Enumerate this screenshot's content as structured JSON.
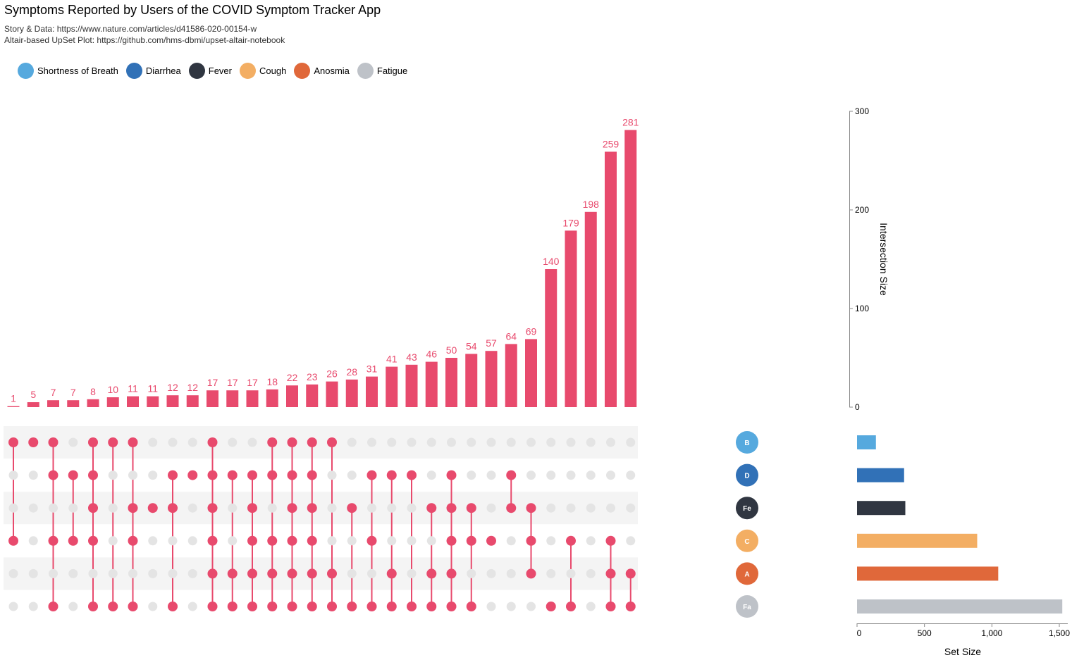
{
  "header": {
    "title": "Symptoms Reported by Users of the COVID Symptom Tracker App",
    "subtitle_1": "Story & Data: https://www.nature.com/articles/d41586-020-00154-w",
    "subtitle_2": "Altair-based UpSet Plot: https://github.com/hms-dbmi/upset-altair-notebook"
  },
  "legend": [
    {
      "label": "Shortness of Breath",
      "color": "#56A9DE"
    },
    {
      "label": "Diarrhea",
      "color": "#3171B7"
    },
    {
      "label": "Fever",
      "color": "#303641"
    },
    {
      "label": "Cough",
      "color": "#F3AE63"
    },
    {
      "label": "Anosmia",
      "color": "#E0683A"
    },
    {
      "label": "Fatigue",
      "color": "#BEC2C8"
    }
  ],
  "chart_data": {
    "type": "bar",
    "bar_color": "#E84A6D",
    "inactive_dot_color": "#E4E4E4",
    "stripe_color": "#F4F4F4",
    "intersection_chart": {
      "ylabel": "Intersection Size",
      "ylim": [
        0,
        300
      ],
      "yticks": [
        0,
        100,
        200,
        300
      ],
      "values": [
        1,
        5,
        7,
        7,
        8,
        10,
        11,
        11,
        12,
        12,
        17,
        17,
        17,
        18,
        22,
        23,
        26,
        28,
        31,
        41,
        43,
        46,
        50,
        54,
        57,
        64,
        69,
        140,
        179,
        198,
        259,
        281
      ]
    },
    "sets": [
      {
        "name": "Shortness of Breath",
        "abbr": "B",
        "color": "#56A9DE",
        "size": 140
      },
      {
        "name": "Diarrhea",
        "abbr": "D",
        "color": "#3171B7",
        "size": 349
      },
      {
        "name": "Fever",
        "abbr": "Fe",
        "color": "#303641",
        "size": 358
      },
      {
        "name": "Cough",
        "abbr": "C",
        "color": "#F3AE63",
        "size": 891
      },
      {
        "name": "Anosmia",
        "abbr": "A",
        "color": "#E0683A",
        "size": 1047
      },
      {
        "name": "Fatigue",
        "abbr": "Fa",
        "color": "#BEC2C8",
        "size": 1522
      }
    ],
    "membership": [
      "100100",
      "100000",
      "110101",
      "010100",
      "111101",
      "100001",
      "101101",
      "001000",
      "011001",
      "010000",
      "111111",
      "010011",
      "011111",
      "110111",
      "111111",
      "111111",
      "100011",
      "001001",
      "010101",
      "010011",
      "010001",
      "001011",
      "011111",
      "001101",
      "000100",
      "011000",
      "001110",
      "000001",
      "000101",
      "000000",
      "000111",
      "000011"
    ],
    "set_size_chart": {
      "xlabel": "Set Size",
      "xlim": [
        0,
        1600
      ],
      "xticks": [
        0,
        500,
        1000,
        1500
      ],
      "xtick_labels": [
        "0",
        "500",
        "1,000",
        "1,500"
      ]
    }
  }
}
